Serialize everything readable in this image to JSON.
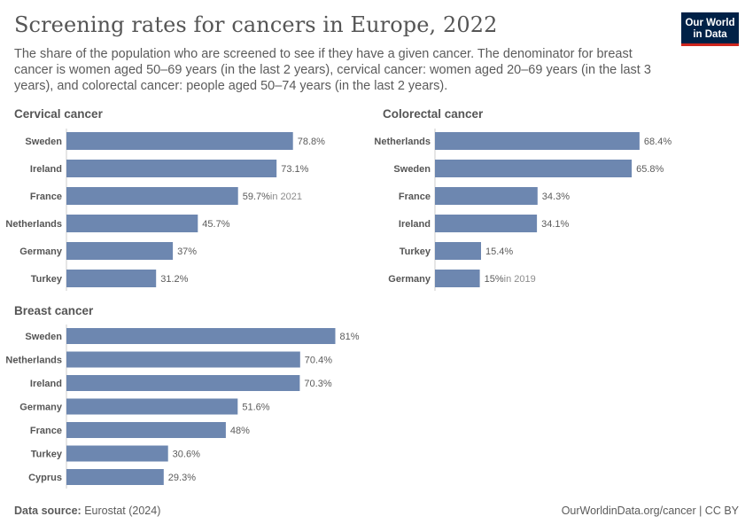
{
  "header": {
    "title": "Screening rates for cancers in Europe, 2022",
    "subtitle": "The share of the population who are screened to see if they have a given cancer. The denominator for breast cancer is women aged 50–69 years (in the last 2 years), cervical cancer: women aged 20–69 years (in the last 3 years), and colorectal cancer: people aged 50–74 years (in the last 2 years).",
    "logo_line1": "Our World",
    "logo_line2": "in Data"
  },
  "footer": {
    "source_label": "Data source:",
    "source": "Eurostat (2024)",
    "credit": "OurWorldinData.org/cancer | CC BY"
  },
  "colors": {
    "bar": "#6d87b0",
    "logo_bg": "#002147",
    "logo_accent": "#ce261e"
  },
  "chart_data": [
    {
      "type": "bar",
      "title": "Cervical cancer",
      "categories": [
        "Sweden",
        "Ireland",
        "France",
        "Netherlands",
        "Germany",
        "Turkey"
      ],
      "values": [
        78.8,
        73.1,
        59.7,
        45.7,
        37,
        31.2
      ],
      "labels": [
        "78.8%",
        "73.1%",
        "59.7%",
        "45.7%",
        "37%",
        "31.2%"
      ],
      "notes": [
        "",
        "",
        "in 2021",
        "",
        "",
        ""
      ],
      "unit": "%"
    },
    {
      "type": "bar",
      "title": "Colorectal cancer",
      "categories": [
        "Netherlands",
        "Sweden",
        "France",
        "Ireland",
        "Turkey",
        "Germany"
      ],
      "values": [
        68.4,
        65.8,
        34.3,
        34.1,
        15.4,
        15
      ],
      "labels": [
        "68.4%",
        "65.8%",
        "34.3%",
        "34.1%",
        "15.4%",
        "15%"
      ],
      "notes": [
        "",
        "",
        "",
        "",
        "",
        "in 2019"
      ],
      "unit": "%"
    },
    {
      "type": "bar",
      "title": "Breast cancer",
      "categories": [
        "Sweden",
        "Netherlands",
        "Ireland",
        "Germany",
        "France",
        "Turkey",
        "Cyprus"
      ],
      "values": [
        81,
        70.4,
        70.3,
        51.6,
        48,
        30.6,
        29.3
      ],
      "labels": [
        "81%",
        "70.4%",
        "70.3%",
        "51.6%",
        "48%",
        "30.6%",
        "29.3%"
      ],
      "notes": [
        "",
        "",
        "",
        "",
        "",
        "",
        ""
      ],
      "unit": "%"
    }
  ]
}
